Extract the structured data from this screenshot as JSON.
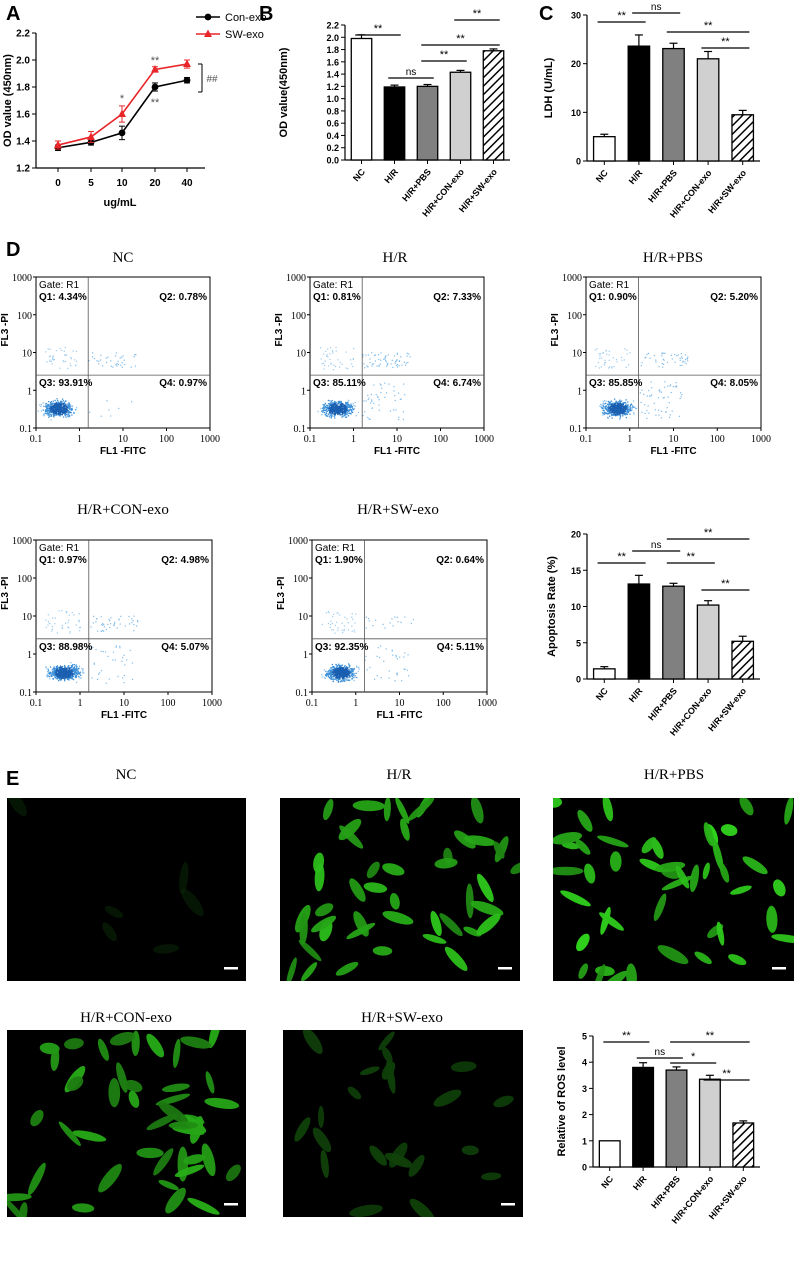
{
  "panel_letters": [
    "A",
    "B",
    "C",
    "D",
    "E"
  ],
  "colors": {
    "black": "#000000",
    "red": "#e8262a",
    "dark_gray": "#808080",
    "light_gray": "#d0d0d0",
    "white": "#ffffff",
    "dot_blue": "#3a8fd8",
    "cell_green": "#39c02a"
  },
  "significance": {
    "double": "**",
    "single": "*",
    "ns": "ns",
    "hash": "##"
  },
  "chart_data": [
    {
      "panel": "A",
      "type": "line",
      "xlabel": "ug/mL",
      "ylabel": "OD value (450nm)",
      "x": [
        0,
        5,
        10,
        20,
        40
      ],
      "x_tick_labels": [
        "0",
        "5",
        "10",
        "20",
        "40"
      ],
      "y_ticks": [
        "1.2",
        "1.4",
        "1.6",
        "1.8",
        "2.0",
        "2.2"
      ],
      "ylim": [
        1.2,
        2.2
      ],
      "legend_position": "top-right",
      "series": [
        {
          "name": "Con-exo",
          "color": "#000000",
          "marker": "circle",
          "values": [
            1.35,
            1.39,
            1.46,
            1.8,
            1.85
          ],
          "errors": [
            0.02,
            0.02,
            0.05,
            0.03,
            0.02
          ]
        },
        {
          "name": "SW-exo",
          "color": "#e8262a",
          "marker": "triangle",
          "values": [
            1.37,
            1.43,
            1.6,
            1.93,
            1.97
          ],
          "errors": [
            0.03,
            0.04,
            0.06,
            0.02,
            0.03
          ]
        }
      ],
      "annotations": [
        "*",
        "**",
        "**"
      ]
    },
    {
      "panel": "B",
      "type": "bar",
      "ylabel": "OD value(450nm)",
      "categories": [
        "NC",
        "H/R",
        "H/R+PBS",
        "H/R+CON-exo",
        "H/R+SW-exo"
      ],
      "values": [
        1.98,
        1.19,
        1.2,
        1.43,
        1.78
      ],
      "errors": [
        0.06,
        0.03,
        0.03,
        0.03,
        0.03
      ],
      "y_ticks": [
        "0.0",
        "0.2",
        "0.4",
        "0.6",
        "0.8",
        "1.0",
        "1.2",
        "1.4",
        "1.6",
        "1.8",
        "2.0",
        "2.2"
      ],
      "ylim": [
        0,
        2.2
      ],
      "brackets": [
        {
          "a": 0,
          "b": 1,
          "label": "**"
        },
        {
          "a": 1,
          "b": 2,
          "label": "ns"
        },
        {
          "a": 2,
          "b": 3,
          "label": "**"
        },
        {
          "a": 2,
          "b": 4,
          "label": "**"
        },
        {
          "a": 3,
          "b": 4,
          "label": "**"
        }
      ]
    },
    {
      "panel": "C",
      "type": "bar",
      "ylabel": "LDH (U/mL)",
      "categories": [
        "NC",
        "H/R",
        "H/R+PBS",
        "H/R+CON-exo",
        "H/R+SW-exo"
      ],
      "values": [
        5.0,
        23.6,
        23.1,
        21.0,
        9.5
      ],
      "errors": [
        0.5,
        2.3,
        1.1,
        1.5,
        0.9
      ],
      "y_ticks": [
        "0",
        "10",
        "20",
        "30"
      ],
      "ylim": [
        0,
        30
      ],
      "brackets": [
        {
          "a": 0,
          "b": 1,
          "label": "**"
        },
        {
          "a": 1,
          "b": 2,
          "label": "ns"
        },
        {
          "a": 2,
          "b": 4,
          "label": "**"
        },
        {
          "a": 3,
          "b": 4,
          "label": "**"
        }
      ]
    },
    {
      "panel": "D",
      "type": "bar",
      "ylabel": "Apoptosis Rate (%)",
      "categories": [
        "NC",
        "H/R",
        "H/R+PBS",
        "H/R+CON-exo",
        "H/R+SW-exo"
      ],
      "values": [
        1.4,
        13.1,
        12.8,
        10.2,
        5.2
      ],
      "errors": [
        0.3,
        1.2,
        0.4,
        0.6,
        0.7
      ],
      "y_ticks": [
        "0",
        "5",
        "10",
        "15",
        "20"
      ],
      "ylim": [
        0,
        20
      ],
      "brackets": [
        {
          "a": 0,
          "b": 1,
          "label": "**"
        },
        {
          "a": 1,
          "b": 2,
          "label": "ns"
        },
        {
          "a": 2,
          "b": 4,
          "label": "**"
        },
        {
          "a": 2,
          "b": 3,
          "label": "**"
        },
        {
          "a": 3,
          "b": 4,
          "label": "**"
        }
      ]
    },
    {
      "panel": "E",
      "type": "bar",
      "ylabel": "Relative of ROS level",
      "categories": [
        "NC",
        "H/R",
        "H/R+PBS",
        "H/R+CON-exo",
        "H/R+SW-exo"
      ],
      "values": [
        1.0,
        3.8,
        3.7,
        3.35,
        1.68
      ],
      "errors": [
        0,
        0.18,
        0.12,
        0.15,
        0.08
      ],
      "y_ticks": [
        "0",
        "1",
        "2",
        "3",
        "4",
        "5"
      ],
      "ylim": [
        0,
        5
      ],
      "brackets": [
        {
          "a": 0,
          "b": 1,
          "label": "**"
        },
        {
          "a": 1,
          "b": 2,
          "label": "ns"
        },
        {
          "a": 2,
          "b": 4,
          "label": "**"
        },
        {
          "a": 2,
          "b": 3,
          "label": "*"
        },
        {
          "a": 3,
          "b": 4,
          "label": "**"
        }
      ]
    }
  ],
  "flow_cytometry": {
    "xlabel": "FL1  -FITC",
    "ylabel": "FL3  -PI",
    "ticks": [
      "0.1",
      "1",
      "10",
      "100",
      "1000"
    ],
    "gate": "Gate: R1",
    "plots": [
      {
        "title": "NC",
        "q1": "Q1: 4.34%",
        "q2": "Q2: 0.78%",
        "q3": "Q3: 93.91%",
        "q4": "Q4: 0.97%",
        "cluster": 0.35,
        "spread": 0.35,
        "upper": 0.04,
        "lower_right": 0.01
      },
      {
        "title": "H/R",
        "q1": "Q1: 0.81%",
        "q2": "Q2: 7.33%",
        "q3": "Q3: 85.11%",
        "q4": "Q4: 6.74%",
        "cluster": 0.55,
        "spread": 0.4,
        "upper": 0.07,
        "lower_right": 0.07
      },
      {
        "title": "H/R+PBS",
        "q1": "Q1: 0.90%",
        "q2": "Q2: 5.20%",
        "q3": "Q3: 85.85%",
        "q4": "Q4: 8.05%",
        "cluster": 0.7,
        "spread": 0.35,
        "upper": 0.05,
        "lower_right": 0.08
      },
      {
        "title": "H/R+CON-exo",
        "q1": "Q1: 0.97%",
        "q2": "Q2: 4.98%",
        "q3": "Q3: 88.98%",
        "q4": "Q4: 5.07%",
        "cluster": 0.55,
        "spread": 0.4,
        "upper": 0.05,
        "lower_right": 0.05
      },
      {
        "title": "H/R+SW-exo",
        "q1": "Q1: 1.90%",
        "q2": "Q2: 0.64%",
        "q3": "Q3: 92.35%",
        "q4": "Q4: 5.11%",
        "cluster": 0.6,
        "spread": 0.35,
        "upper": 0.02,
        "lower_right": 0.05
      }
    ]
  },
  "micrographs": {
    "titles": [
      "NC",
      "H/R",
      "H/R+PBS",
      "H/R+CON-exo",
      "H/R+SW-exo"
    ],
    "brightness": [
      0.03,
      0.9,
      1.0,
      0.75,
      0.15
    ]
  }
}
